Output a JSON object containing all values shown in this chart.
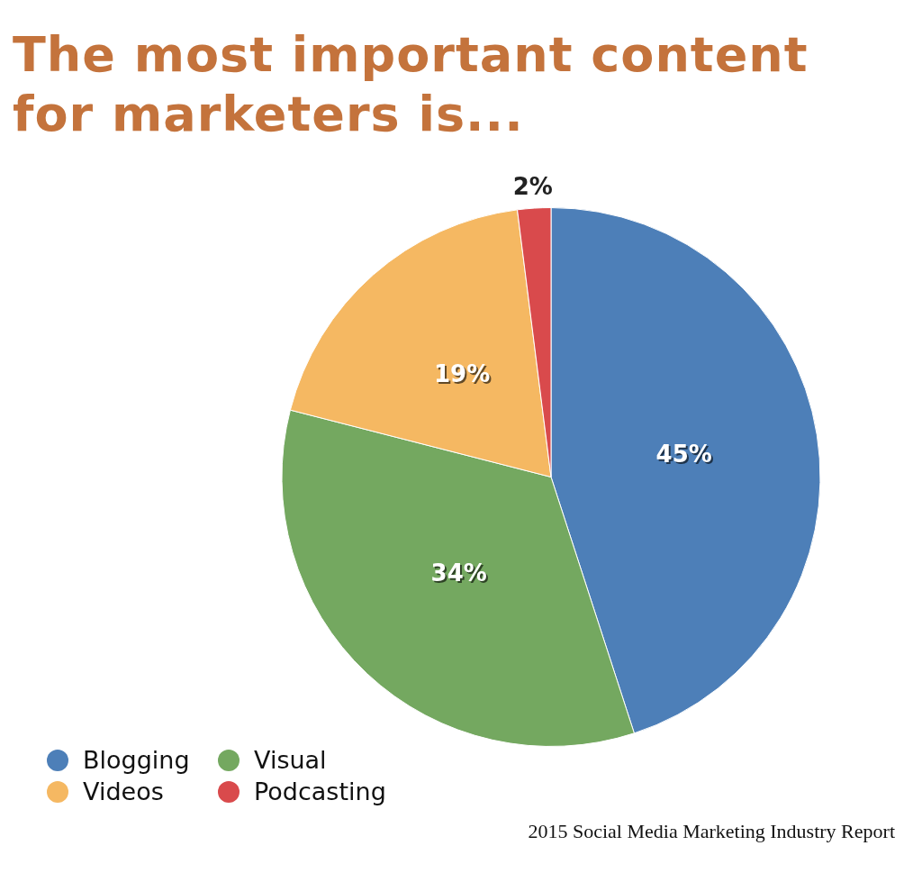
{
  "chart_data": {
    "type": "pie",
    "title": "The most important content for marketers is...",
    "categories": [
      "Blogging",
      "Visual",
      "Videos",
      "Podcasting"
    ],
    "values": [
      45,
      34,
      19,
      2
    ],
    "colors": [
      "#4d7fb8",
      "#74a860",
      "#f5b862",
      "#d94a4c"
    ],
    "value_labels": [
      "45%",
      "34%",
      "19%",
      "2%"
    ],
    "legend": "bottom left",
    "annotations": [
      "2015 Social Media Marketing Industry Report"
    ]
  }
}
